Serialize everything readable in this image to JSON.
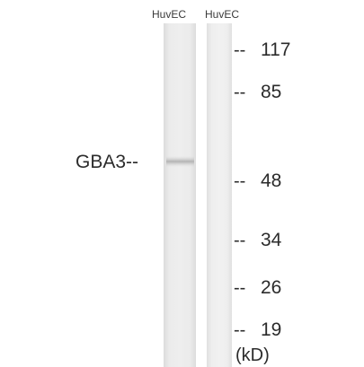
{
  "lanes": {
    "lane1": "HuvEC",
    "lane2": "HuvEC"
  },
  "band_label": "GBA3--",
  "markers": {
    "m117": {
      "tick": "--",
      "value": "117"
    },
    "m85": {
      "tick": "--",
      "value": "85"
    },
    "m48": {
      "tick": "--",
      "value": "48"
    },
    "m34": {
      "tick": "--",
      "value": "34"
    },
    "m26": {
      "tick": "--",
      "value": "26"
    },
    "m19": {
      "tick": "--",
      "value": "19"
    }
  },
  "unit": "(kD)",
  "colors": {
    "background": "#ffffff",
    "lane": "#e9e9e9",
    "band": "#bdbdbd",
    "text": "#2b2b2b"
  }
}
